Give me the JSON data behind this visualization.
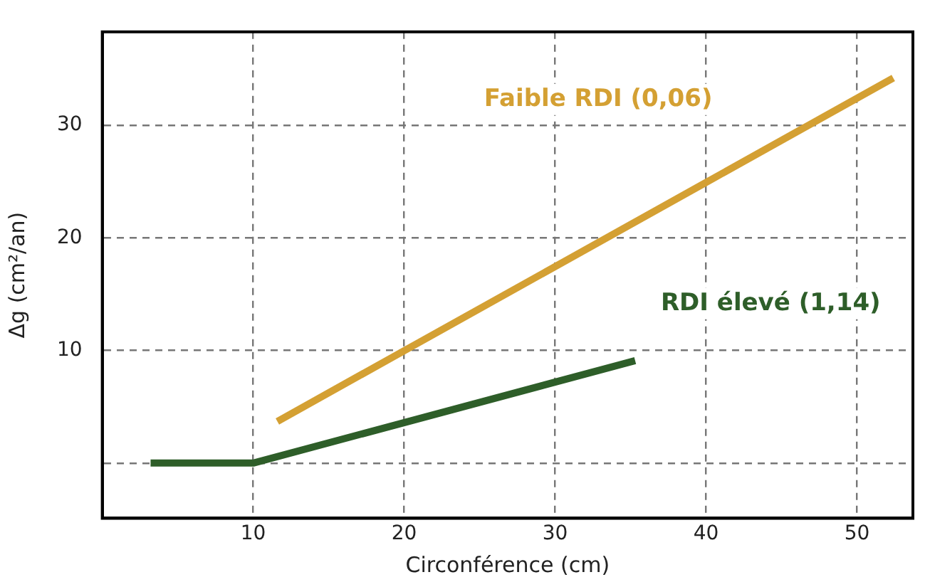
{
  "chart_data": {
    "type": "line",
    "xlabel": "Circonférence (cm)",
    "ylabel": "Δg (cm²/an)",
    "xlim": [
      0,
      53.7
    ],
    "xticks": [
      10,
      20,
      30,
      40,
      50
    ],
    "ylim": [
      -4.9,
      38.3
    ],
    "yticks": [
      {
        "value": 0,
        "label": null
      },
      10,
      20,
      30
    ],
    "series": [
      {
        "name": "Faible RDI (0,06)",
        "color": "#d4a033",
        "x": [
          11.6,
          52.4
        ],
        "values": [
          3.7,
          34.2
        ]
      },
      {
        "name": "RDI élevé (1,14)",
        "color": "#2e5e29",
        "x": [
          3.2,
          10,
          35.3
        ],
        "values": [
          0,
          0,
          9.1
        ]
      }
    ],
    "grid": true,
    "legend": false,
    "marker": "none",
    "line_style": "solid"
  }
}
